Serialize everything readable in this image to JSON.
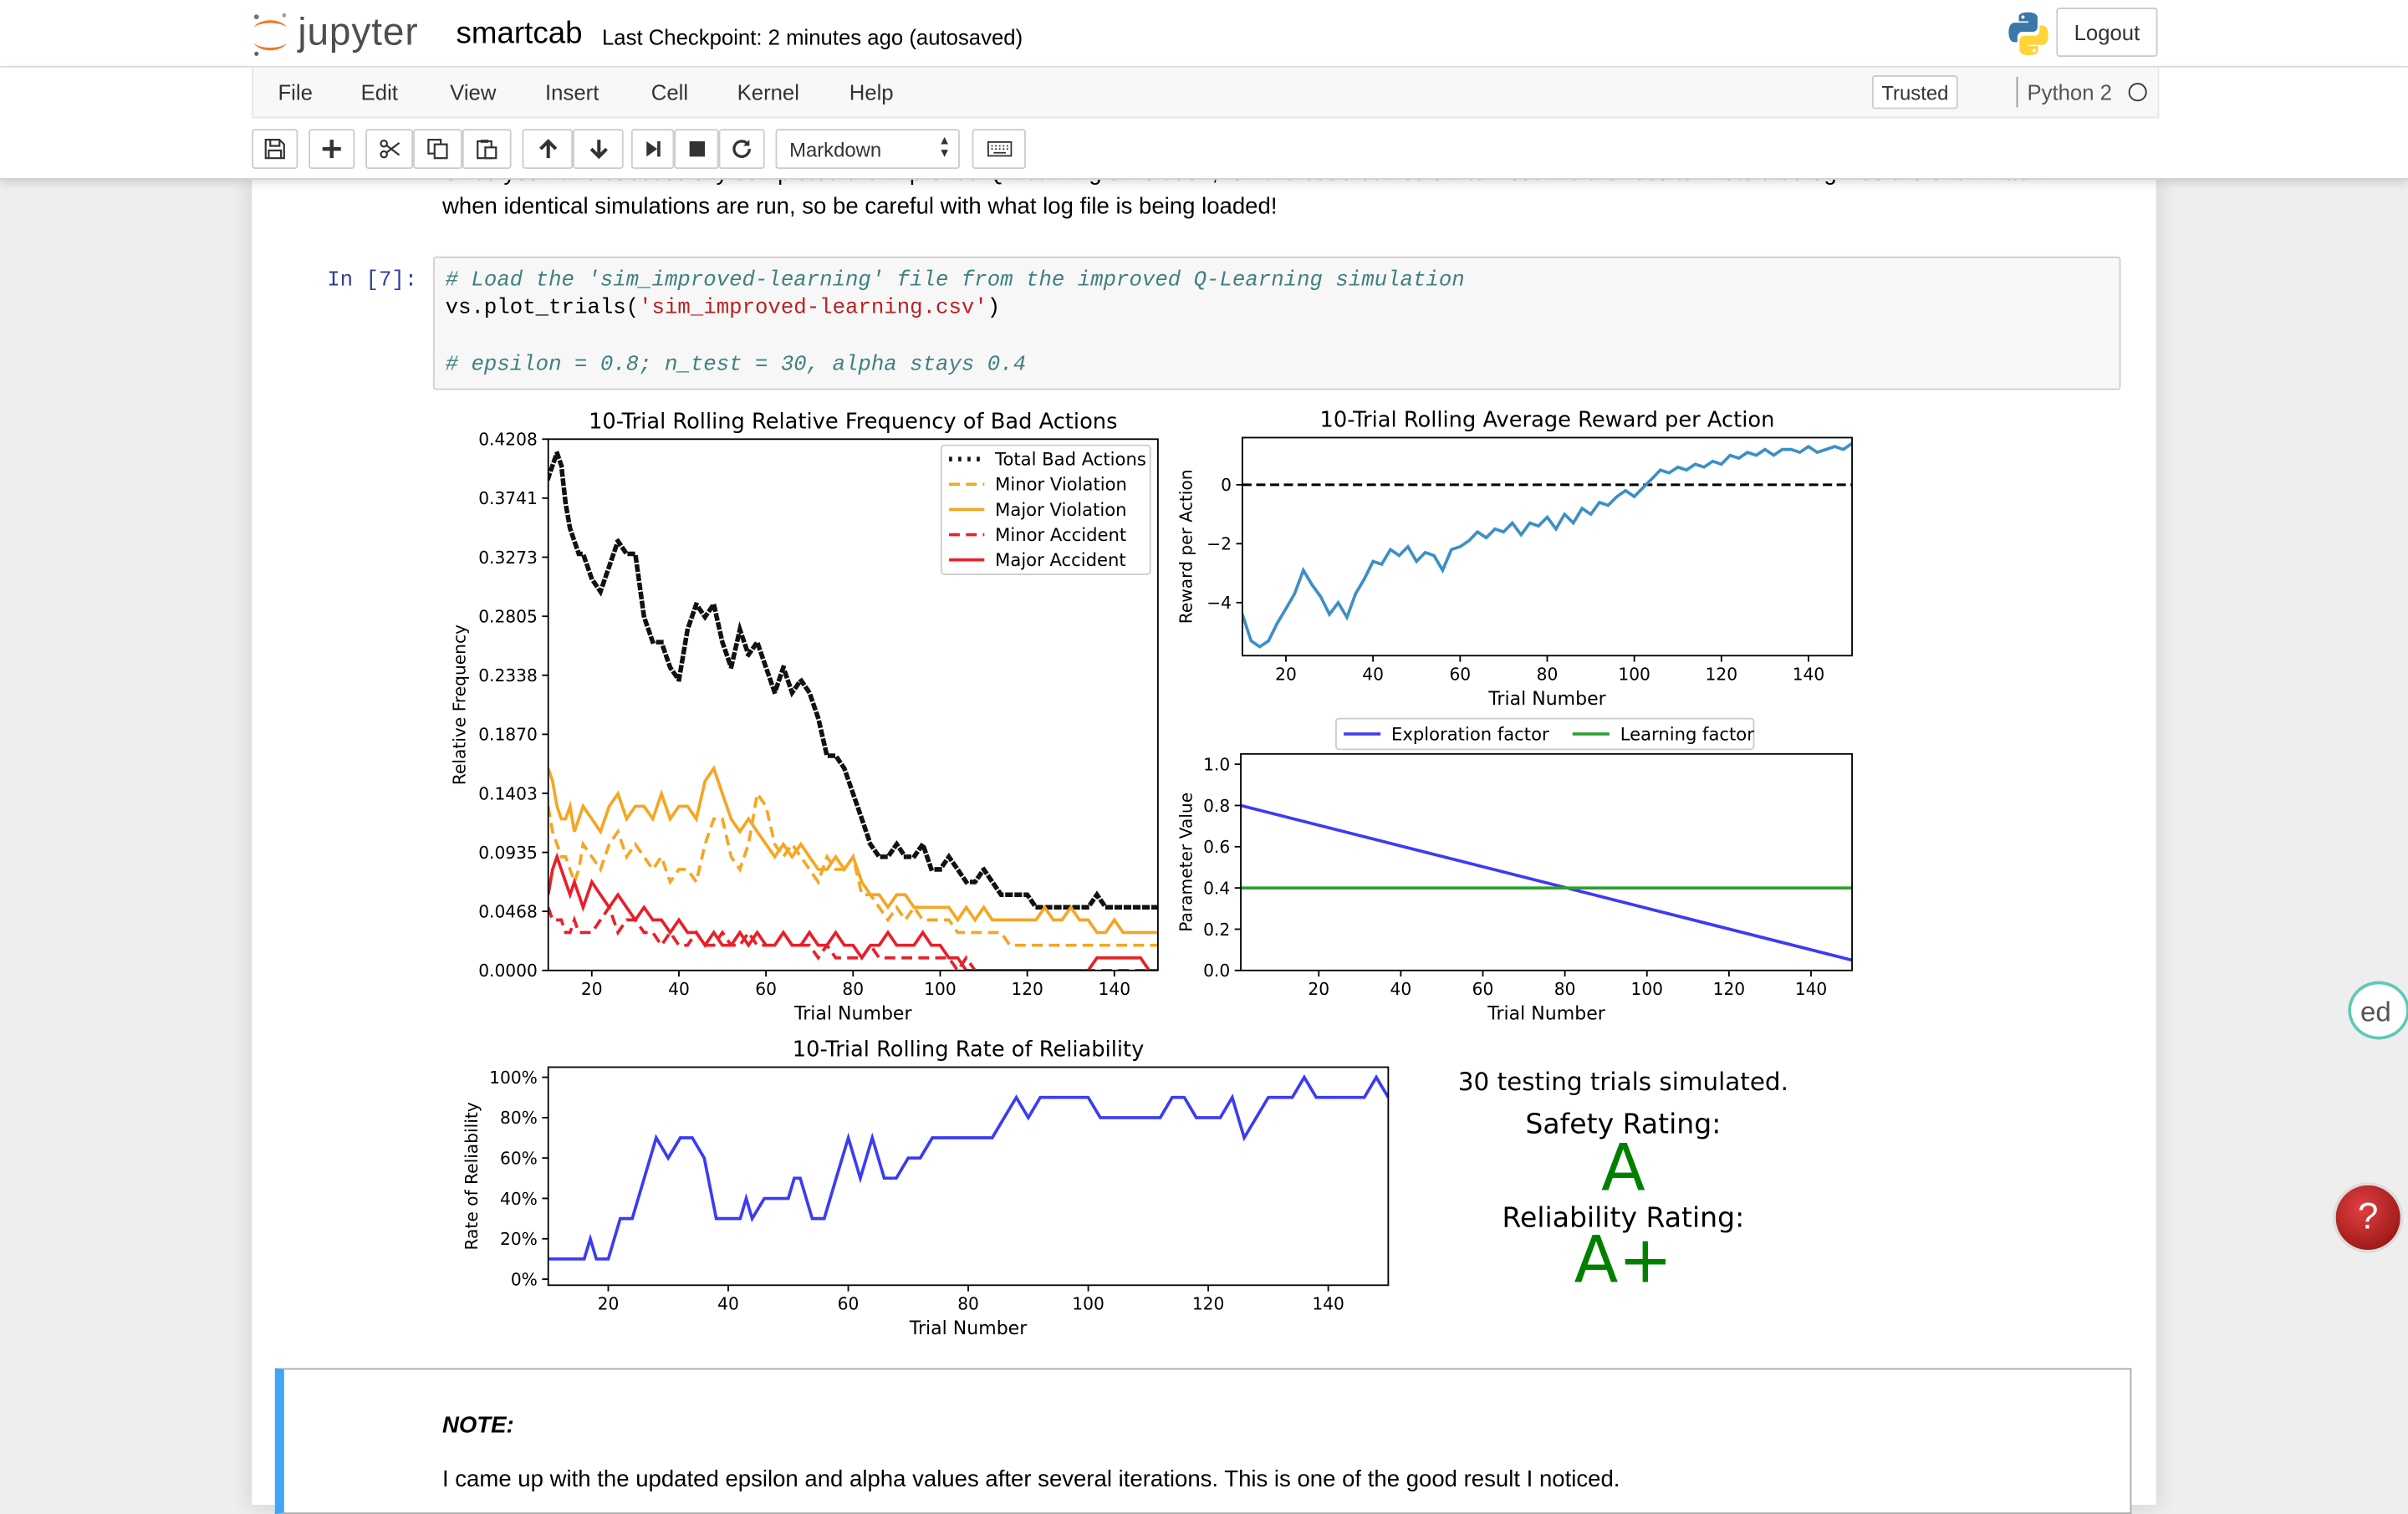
{
  "header": {
    "logo_text": "jupyter",
    "notebook_name": "smartcab",
    "checkpoint": "Last Checkpoint: 2 minutes ago (autosaved)",
    "logout_label": "Logout"
  },
  "menu": {
    "items": [
      "File",
      "Edit",
      "View",
      "Insert",
      "Cell",
      "Kernel",
      "Help"
    ],
    "trusted_label": "Trusted",
    "kernel_name": "Python 2"
  },
  "toolbar": {
    "cell_type": "Markdown"
  },
  "markdown_top": {
    "line1": "Once you have successfully completed the improved Q-Learning simulation, run the code cell below to visualize the results. Note that log files are overwritten",
    "line2": "when identical simulations are run, so be careful with what log file is being loaded!"
  },
  "code_cell": {
    "prompt": "In [7]:",
    "line1_comment": "# Load the 'sim_improved-learning' file from the improved Q-Learning simulation",
    "line2_prefix": "vs.plot_trials(",
    "line2_string": "'sim_improved-learning.csv'",
    "line2_suffix": ")",
    "line3_comment": "# epsilon = 0.8; n_test = 30, alpha stays 0.4"
  },
  "results": {
    "trials_text": "30 testing trials simulated.",
    "safety_label": "Safety Rating:",
    "safety_rating": "A",
    "reliability_label": "Reliability Rating:",
    "reliability_rating": "A+",
    "rating_color": "#008000"
  },
  "note_cell": {
    "title": "NOTE:",
    "text": "I came up with the updated epsilon and alpha values after several iterations. This is one of the good result I noticed."
  },
  "chart_data": [
    {
      "type": "line",
      "title": "10-Trial Rolling Relative Frequency of Bad Actions",
      "xlabel": "Trial Number",
      "ylabel": "Relative Frequency",
      "xlim": [
        10,
        150
      ],
      "ylim": [
        0,
        0.4208
      ],
      "xticks": [
        "20",
        "40",
        "60",
        "80",
        "100",
        "120",
        "140"
      ],
      "yticks": [
        "0.0000",
        "0.0468",
        "0.0935",
        "0.1403",
        "0.1870",
        "0.2338",
        "0.2805",
        "0.3273",
        "0.3741",
        "0.4208"
      ],
      "legend_position": "top-right",
      "x": [
        10,
        11,
        12,
        13,
        14,
        15,
        16,
        17,
        18,
        20,
        22,
        24,
        26,
        28,
        30,
        32,
        34,
        36,
        38,
        40,
        42,
        44,
        46,
        48,
        50,
        52,
        54,
        56,
        58,
        60,
        62,
        64,
        66,
        68,
        70,
        72,
        74,
        76,
        78,
        80,
        82,
        84,
        86,
        88,
        90,
        92,
        94,
        96,
        98,
        100,
        102,
        104,
        106,
        108,
        110,
        112,
        114,
        116,
        118,
        120,
        122,
        124,
        126,
        128,
        130,
        132,
        134,
        136,
        138,
        140,
        142,
        144,
        146,
        148,
        150
      ],
      "series": [
        {
          "name": "Total Bad Actions",
          "color": "#111111",
          "style": "dotted",
          "values": [
            0.39,
            0.4,
            0.41,
            0.4,
            0.37,
            0.35,
            0.34,
            0.33,
            0.33,
            0.31,
            0.3,
            0.32,
            0.34,
            0.33,
            0.33,
            0.28,
            0.26,
            0.26,
            0.24,
            0.23,
            0.27,
            0.29,
            0.28,
            0.29,
            0.26,
            0.24,
            0.27,
            0.25,
            0.26,
            0.24,
            0.22,
            0.24,
            0.22,
            0.23,
            0.22,
            0.2,
            0.17,
            0.17,
            0.16,
            0.14,
            0.12,
            0.1,
            0.09,
            0.09,
            0.1,
            0.09,
            0.09,
            0.1,
            0.08,
            0.08,
            0.09,
            0.08,
            0.07,
            0.07,
            0.08,
            0.07,
            0.06,
            0.06,
            0.06,
            0.06,
            0.05,
            0.05,
            0.05,
            0.05,
            0.05,
            0.05,
            0.05,
            0.06,
            0.05,
            0.05,
            0.05,
            0.05,
            0.05,
            0.05,
            0.05
          ]
        },
        {
          "name": "Minor Violation",
          "color": "#f5a623",
          "style": "dashed",
          "values": [
            0.13,
            0.11,
            0.1,
            0.09,
            0.09,
            0.08,
            0.07,
            0.08,
            0.1,
            0.09,
            0.08,
            0.1,
            0.11,
            0.09,
            0.1,
            0.09,
            0.08,
            0.09,
            0.07,
            0.08,
            0.08,
            0.07,
            0.1,
            0.12,
            0.12,
            0.09,
            0.08,
            0.1,
            0.14,
            0.13,
            0.1,
            0.09,
            0.1,
            0.09,
            0.08,
            0.07,
            0.09,
            0.08,
            0.08,
            0.09,
            0.06,
            0.06,
            0.05,
            0.04,
            0.05,
            0.04,
            0.05,
            0.04,
            0.04,
            0.04,
            0.04,
            0.03,
            0.03,
            0.03,
            0.03,
            0.03,
            0.03,
            0.02,
            0.02,
            0.02,
            0.02,
            0.02,
            0.02,
            0.02,
            0.02,
            0.02,
            0.02,
            0.02,
            0.02,
            0.02,
            0.02,
            0.02,
            0.02,
            0.02,
            0.02
          ]
        },
        {
          "name": "Major Violation",
          "color": "#f5a623",
          "style": "solid",
          "values": [
            0.16,
            0.15,
            0.13,
            0.12,
            0.12,
            0.13,
            0.11,
            0.12,
            0.13,
            0.12,
            0.11,
            0.13,
            0.14,
            0.12,
            0.13,
            0.13,
            0.12,
            0.14,
            0.12,
            0.13,
            0.13,
            0.12,
            0.15,
            0.16,
            0.14,
            0.12,
            0.11,
            0.12,
            0.11,
            0.1,
            0.09,
            0.1,
            0.09,
            0.1,
            0.09,
            0.08,
            0.08,
            0.09,
            0.08,
            0.09,
            0.07,
            0.06,
            0.06,
            0.05,
            0.06,
            0.06,
            0.05,
            0.05,
            0.05,
            0.05,
            0.05,
            0.04,
            0.05,
            0.04,
            0.05,
            0.04,
            0.04,
            0.04,
            0.04,
            0.04,
            0.04,
            0.05,
            0.04,
            0.04,
            0.05,
            0.04,
            0.04,
            0.03,
            0.03,
            0.04,
            0.03,
            0.03,
            0.03,
            0.03,
            0.03
          ]
        },
        {
          "name": "Minor Accident",
          "color": "#e8202a",
          "style": "dashed",
          "values": [
            0.05,
            0.04,
            0.04,
            0.04,
            0.03,
            0.03,
            0.04,
            0.03,
            0.03,
            0.03,
            0.04,
            0.05,
            0.03,
            0.04,
            0.04,
            0.03,
            0.03,
            0.02,
            0.03,
            0.02,
            0.02,
            0.03,
            0.02,
            0.02,
            0.03,
            0.02,
            0.02,
            0.03,
            0.02,
            0.02,
            0.02,
            0.03,
            0.02,
            0.02,
            0.02,
            0.01,
            0.02,
            0.01,
            0.01,
            0.01,
            0.01,
            0.02,
            0.01,
            0.01,
            0.01,
            0.01,
            0.01,
            0.01,
            0.01,
            0.01,
            0.01,
            0.0,
            0.01,
            0.0,
            0.0,
            0.0,
            0.0,
            0.0,
            0.0,
            0.0,
            0.0,
            0.0,
            0.0,
            0.0,
            0.0,
            0.0,
            0.0,
            0.0,
            0.0,
            0.0,
            0.0,
            0.0,
            0.0,
            0.0,
            0.0
          ]
        },
        {
          "name": "Major Accident",
          "color": "#e8202a",
          "style": "solid",
          "values": [
            0.06,
            0.08,
            0.09,
            0.08,
            0.07,
            0.06,
            0.07,
            0.06,
            0.05,
            0.07,
            0.06,
            0.05,
            0.06,
            0.05,
            0.04,
            0.05,
            0.04,
            0.04,
            0.03,
            0.04,
            0.03,
            0.03,
            0.02,
            0.03,
            0.02,
            0.02,
            0.03,
            0.02,
            0.03,
            0.02,
            0.02,
            0.03,
            0.02,
            0.02,
            0.03,
            0.02,
            0.02,
            0.03,
            0.02,
            0.02,
            0.01,
            0.02,
            0.02,
            0.03,
            0.02,
            0.02,
            0.02,
            0.03,
            0.02,
            0.02,
            0.01,
            0.01,
            0.0,
            0.0,
            0.0,
            0.0,
            0.0,
            0.0,
            0.0,
            0.0,
            0.0,
            0.0,
            0.0,
            0.0,
            0.0,
            0.0,
            0.0,
            0.01,
            0.01,
            0.01,
            0.01,
            0.01,
            0.01,
            0.0,
            0.0
          ]
        }
      ]
    },
    {
      "type": "line",
      "title": "10-Trial Rolling Average Reward per Action",
      "xlabel": "Trial Number",
      "ylabel": "Reward per Action",
      "xlim": [
        10,
        150
      ],
      "ylim": [
        -5.8,
        1.6
      ],
      "xticks": [
        "20",
        "40",
        "60",
        "80",
        "100",
        "120",
        "140"
      ],
      "yticks": [
        "−4",
        "−2",
        "0"
      ],
      "reference_line": 0,
      "series": [
        {
          "name": "",
          "color": "#3c8fc7",
          "x": [
            10,
            12,
            14,
            16,
            18,
            20,
            22,
            24,
            26,
            28,
            30,
            32,
            34,
            36,
            38,
            40,
            42,
            44,
            46,
            48,
            50,
            52,
            54,
            56,
            58,
            60,
            62,
            64,
            66,
            68,
            70,
            72,
            74,
            76,
            78,
            80,
            82,
            84,
            86,
            88,
            90,
            92,
            94,
            96,
            98,
            100,
            102,
            104,
            106,
            108,
            110,
            112,
            114,
            116,
            118,
            120,
            122,
            124,
            126,
            128,
            130,
            132,
            134,
            136,
            138,
            140,
            142,
            144,
            146,
            148,
            150
          ],
          "values": [
            -4.4,
            -5.3,
            -5.5,
            -5.3,
            -4.7,
            -4.2,
            -3.7,
            -2.9,
            -3.4,
            -3.8,
            -4.4,
            -4.0,
            -4.5,
            -3.7,
            -3.2,
            -2.6,
            -2.7,
            -2.2,
            -2.4,
            -2.1,
            -2.6,
            -2.3,
            -2.4,
            -2.9,
            -2.2,
            -2.1,
            -1.9,
            -1.6,
            -1.8,
            -1.5,
            -1.6,
            -1.3,
            -1.7,
            -1.3,
            -1.4,
            -1.1,
            -1.5,
            -1.0,
            -1.3,
            -0.8,
            -1.0,
            -0.6,
            -0.7,
            -0.4,
            -0.2,
            -0.4,
            -0.1,
            0.2,
            0.5,
            0.4,
            0.6,
            0.5,
            0.7,
            0.6,
            0.8,
            0.7,
            1.0,
            0.9,
            1.1,
            1.0,
            1.2,
            1.0,
            1.2,
            1.2,
            1.1,
            1.3,
            1.1,
            1.2,
            1.3,
            1.2,
            1.4
          ]
        }
      ]
    },
    {
      "type": "line",
      "title": "",
      "xlabel": "Trial Number",
      "ylabel": "Parameter Value",
      "xlim": [
        1,
        150
      ],
      "ylim": [
        0,
        1.05
      ],
      "xticks": [
        "20",
        "40",
        "60",
        "80",
        "100",
        "120",
        "140"
      ],
      "yticks": [
        "0.0",
        "0.2",
        "0.4",
        "0.6",
        "0.8",
        "1.0"
      ],
      "legend_position": "top",
      "series": [
        {
          "name": "Exploration factor",
          "color": "#3b3bf5",
          "x": [
            1,
            150
          ],
          "values": [
            0.8,
            0.05
          ]
        },
        {
          "name": "Learning factor",
          "color": "#2ca02c",
          "x": [
            1,
            150
          ],
          "values": [
            0.4,
            0.4
          ]
        }
      ]
    },
    {
      "type": "line",
      "title": "10-Trial Rolling Rate of Reliability",
      "xlabel": "Trial Number",
      "ylabel": "Rate of Reliability",
      "xlim": [
        10,
        150
      ],
      "ylim": [
        -3,
        105
      ],
      "xticks": [
        "20",
        "40",
        "60",
        "80",
        "100",
        "120",
        "140"
      ],
      "yticks": [
        "0%",
        "20%",
        "40%",
        "60%",
        "80%",
        "100%"
      ],
      "series": [
        {
          "name": "",
          "color": "#3b3bf5",
          "x": [
            10,
            16,
            17,
            18,
            20,
            22,
            24,
            26,
            28,
            30,
            32,
            34,
            36,
            38,
            40,
            42,
            43,
            44,
            46,
            48,
            50,
            51,
            52,
            54,
            56,
            58,
            60,
            62,
            64,
            66,
            68,
            70,
            72,
            74,
            76,
            78,
            80,
            82,
            84,
            86,
            88,
            90,
            92,
            94,
            96,
            98,
            100,
            102,
            104,
            106,
            108,
            110,
            112,
            114,
            116,
            118,
            120,
            122,
            124,
            126,
            128,
            130,
            132,
            134,
            136,
            138,
            140,
            142,
            144,
            146,
            148,
            150
          ],
          "values": [
            10,
            10,
            20,
            10,
            10,
            30,
            30,
            50,
            70,
            60,
            70,
            70,
            60,
            30,
            30,
            30,
            40,
            30,
            40,
            40,
            40,
            50,
            50,
            30,
            30,
            50,
            70,
            50,
            70,
            50,
            50,
            60,
            60,
            70,
            70,
            70,
            70,
            70,
            70,
            80,
            90,
            80,
            90,
            90,
            90,
            90,
            90,
            80,
            80,
            80,
            80,
            80,
            80,
            90,
            90,
            80,
            80,
            80,
            90,
            70,
            80,
            90,
            90,
            90,
            100,
            90,
            90,
            90,
            90,
            90,
            100,
            90
          ]
        }
      ]
    }
  ]
}
